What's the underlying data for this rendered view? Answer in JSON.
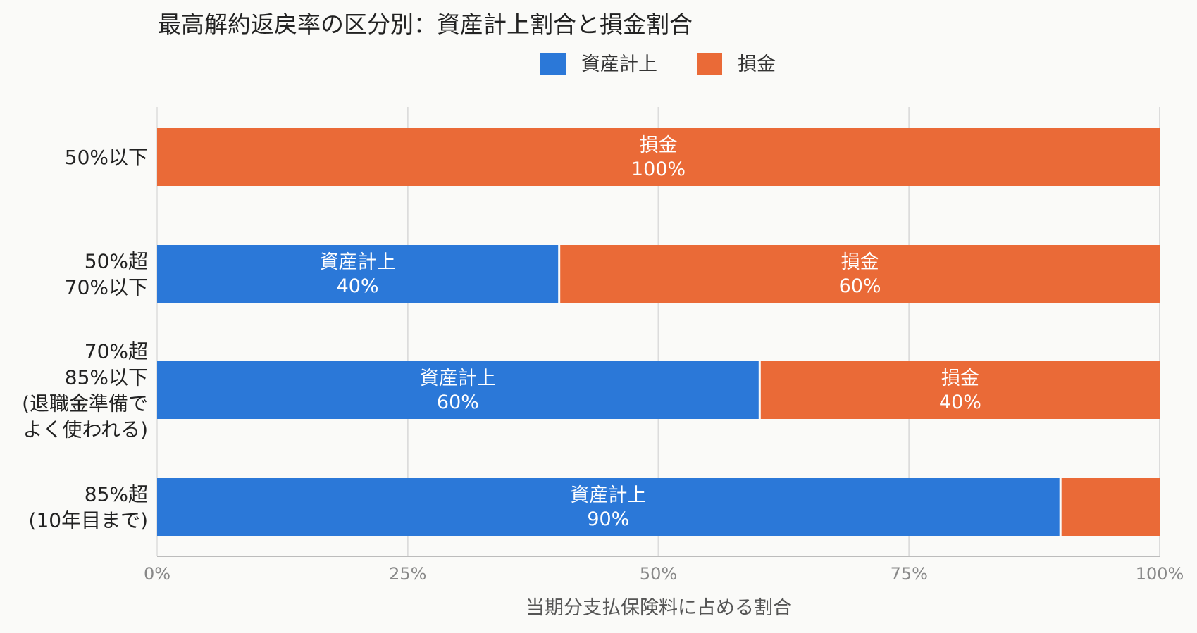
{
  "chart_data": {
    "type": "bar",
    "orientation": "horizontal",
    "stacked": true,
    "title": "最高解約返戻率の区分別：資産計上割合と損金割合",
    "xlabel": "当期分支払保険料に占める割合",
    "ylabel": "",
    "xlim": [
      0,
      100
    ],
    "x_ticks": [
      "0%",
      "25%",
      "50%",
      "75%",
      "100%"
    ],
    "x_tick_values": [
      0,
      25,
      50,
      75,
      100
    ],
    "grid": true,
    "legend": "top-center",
    "categories": [
      [
        "50%以下"
      ],
      [
        "50%超",
        "70%以下"
      ],
      [
        "70%超",
        "85%以下",
        "(退職金準備で",
        "よく使われる)"
      ],
      [
        "85%超",
        "(10年目まで)"
      ]
    ],
    "series": [
      {
        "name": "資産計上",
        "color": "#2b78d8",
        "values": [
          0,
          40,
          60,
          90
        ]
      },
      {
        "name": "損金",
        "color": "#ea6a37",
        "values": [
          100,
          60,
          40,
          10
        ]
      }
    ],
    "bar_labels": [
      [
        null,
        "損金\n100%"
      ],
      [
        "資産計上\n40%",
        "損金\n60%"
      ],
      [
        "資産計上\n60%",
        "損金\n40%"
      ],
      [
        "資産計上\n90%",
        null
      ]
    ]
  }
}
